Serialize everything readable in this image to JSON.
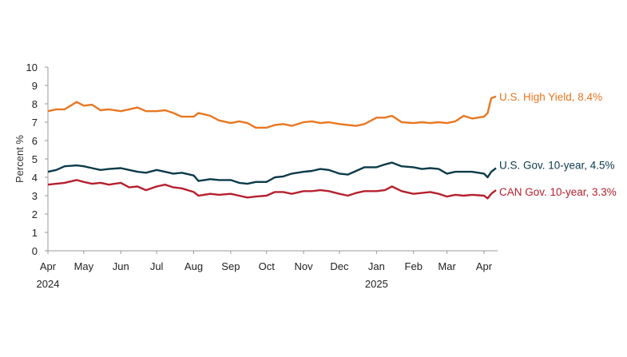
{
  "chart_data": {
    "type": "line",
    "title": "",
    "xlabel": "",
    "ylabel": "Percent  %",
    "ylim": [
      0,
      10
    ],
    "yticks": [
      "0",
      "1",
      "2",
      "3",
      "4",
      "5",
      "6",
      "7",
      "8",
      "9",
      "10"
    ],
    "grid": false,
    "xlim": [
      "2024-04-01",
      "2025-04-11"
    ],
    "month_ticks": [
      {
        "date": "2024-04-01",
        "label": "Apr"
      },
      {
        "date": "2024-05-01",
        "label": "May"
      },
      {
        "date": "2024-06-01",
        "label": "Jun"
      },
      {
        "date": "2024-07-01",
        "label": "Jul"
      },
      {
        "date": "2024-08-01",
        "label": "Aug"
      },
      {
        "date": "2024-09-01",
        "label": "Sep"
      },
      {
        "date": "2024-10-01",
        "label": "Oct"
      },
      {
        "date": "2024-11-01",
        "label": "Nov"
      },
      {
        "date": "2024-12-01",
        "label": "Dec"
      },
      {
        "date": "2025-01-01",
        "label": "Jan"
      },
      {
        "date": "2025-02-01",
        "label": "Feb"
      },
      {
        "date": "2025-03-01",
        "label": "Mar"
      },
      {
        "date": "2025-04-01",
        "label": "Apr"
      }
    ],
    "year_labels": [
      {
        "date": "2024-04-01",
        "label": "2024"
      },
      {
        "date": "2025-01-01",
        "label": "2025"
      }
    ],
    "x": [
      "2024-04-01",
      "2024-04-08",
      "2024-04-15",
      "2024-04-25",
      "2024-05-01",
      "2024-05-08",
      "2024-05-15",
      "2024-05-22",
      "2024-06-01",
      "2024-06-08",
      "2024-06-15",
      "2024-06-22",
      "2024-07-01",
      "2024-07-08",
      "2024-07-15",
      "2024-07-22",
      "2024-08-01",
      "2024-08-05",
      "2024-08-15",
      "2024-08-22",
      "2024-09-01",
      "2024-09-08",
      "2024-09-15",
      "2024-09-22",
      "2024-10-01",
      "2024-10-08",
      "2024-10-15",
      "2024-10-22",
      "2024-11-01",
      "2024-11-08",
      "2024-11-15",
      "2024-11-22",
      "2024-12-01",
      "2024-12-08",
      "2024-12-15",
      "2024-12-22",
      "2025-01-01",
      "2025-01-08",
      "2025-01-14",
      "2025-01-22",
      "2025-02-01",
      "2025-02-08",
      "2025-02-15",
      "2025-02-22",
      "2025-03-01",
      "2025-03-08",
      "2025-03-15",
      "2025-03-22",
      "2025-04-01",
      "2025-04-04",
      "2025-04-07",
      "2025-04-11"
    ],
    "series": [
      {
        "name": "U.S. High Yield, 8.4%",
        "color": "#E87722",
        "values": [
          7.6,
          7.7,
          7.7,
          8.1,
          7.9,
          7.95,
          7.65,
          7.7,
          7.6,
          7.7,
          7.8,
          7.6,
          7.6,
          7.65,
          7.5,
          7.3,
          7.3,
          7.5,
          7.35,
          7.1,
          6.95,
          7.05,
          6.95,
          6.7,
          6.7,
          6.85,
          6.9,
          6.8,
          7.0,
          7.05,
          6.95,
          7.0,
          6.9,
          6.85,
          6.8,
          6.9,
          7.25,
          7.25,
          7.35,
          7.0,
          6.95,
          7.0,
          6.95,
          7.0,
          6.95,
          7.05,
          7.35,
          7.2,
          7.3,
          7.5,
          8.3,
          8.4
        ]
      },
      {
        "name": "U.S. Gov. 10-year, 4.5%",
        "color": "#0B3A4A",
        "values": [
          4.3,
          4.4,
          4.6,
          4.65,
          4.6,
          4.5,
          4.4,
          4.45,
          4.5,
          4.4,
          4.3,
          4.25,
          4.4,
          4.3,
          4.2,
          4.25,
          4.1,
          3.8,
          3.9,
          3.85,
          3.85,
          3.7,
          3.65,
          3.75,
          3.75,
          4.0,
          4.05,
          4.2,
          4.3,
          4.35,
          4.45,
          4.4,
          4.2,
          4.15,
          4.35,
          4.55,
          4.55,
          4.7,
          4.8,
          4.6,
          4.55,
          4.45,
          4.5,
          4.45,
          4.2,
          4.3,
          4.3,
          4.3,
          4.2,
          4.0,
          4.3,
          4.5
        ]
      },
      {
        "name": "CAN Gov. 10-year, 3.3%",
        "color": "#B5202E",
        "values": [
          3.6,
          3.65,
          3.7,
          3.85,
          3.75,
          3.65,
          3.7,
          3.6,
          3.7,
          3.45,
          3.5,
          3.3,
          3.5,
          3.6,
          3.45,
          3.4,
          3.2,
          3.0,
          3.1,
          3.05,
          3.1,
          3.0,
          2.9,
          2.95,
          3.0,
          3.2,
          3.2,
          3.1,
          3.25,
          3.25,
          3.3,
          3.25,
          3.1,
          3.0,
          3.15,
          3.25,
          3.25,
          3.3,
          3.5,
          3.25,
          3.1,
          3.15,
          3.2,
          3.1,
          2.95,
          3.05,
          3.0,
          3.05,
          3.0,
          2.85,
          3.1,
          3.3
        ]
      }
    ],
    "legend": "direct labels at right end of lines"
  }
}
